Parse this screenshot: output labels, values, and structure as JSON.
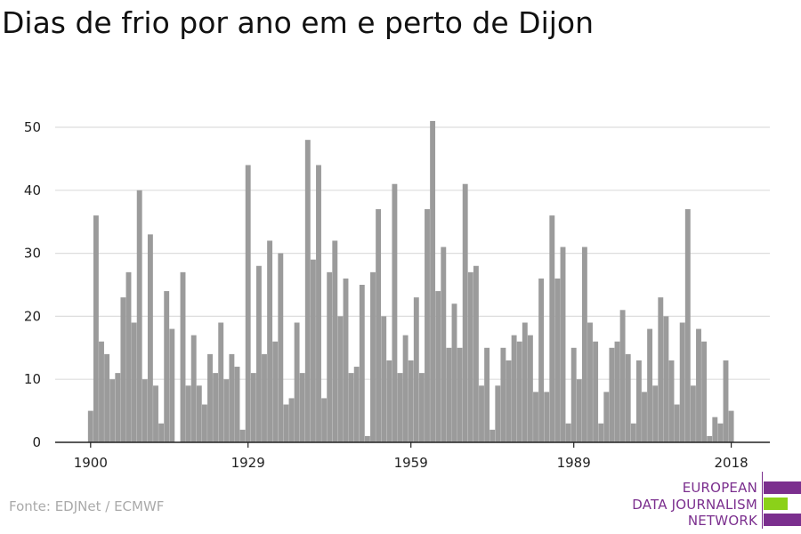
{
  "title": "Dias de frio por ano em e perto de Dijon",
  "source": "Fonte: EDJNet / ECMWF",
  "logo": {
    "lines": [
      "EUROPEAN",
      "DATA JOURNALISM",
      "NETWORK"
    ],
    "purple": "#7b2f8e",
    "green": "#8bd119"
  },
  "colors": {
    "bar": "#9b9b9b",
    "grid": "#dddddd",
    "axis": "#222222",
    "text": "#222222"
  },
  "chart_data": {
    "type": "bar",
    "title": "Dias de frio por ano em e perto de Dijon",
    "xlabel": "",
    "ylabel": "",
    "ylim": [
      0,
      52
    ],
    "yticks": [
      0,
      10,
      20,
      30,
      40,
      50
    ],
    "xticks": [
      1900,
      1929,
      1959,
      1989,
      2018
    ],
    "grid": true,
    "x": [
      1900,
      1901,
      1902,
      1903,
      1904,
      1905,
      1906,
      1907,
      1908,
      1909,
      1910,
      1911,
      1912,
      1913,
      1914,
      1915,
      1916,
      1917,
      1918,
      1919,
      1920,
      1921,
      1922,
      1923,
      1924,
      1925,
      1926,
      1927,
      1928,
      1929,
      1930,
      1931,
      1932,
      1933,
      1934,
      1935,
      1936,
      1937,
      1938,
      1939,
      1940,
      1941,
      1942,
      1943,
      1944,
      1945,
      1946,
      1947,
      1948,
      1949,
      1950,
      1951,
      1952,
      1953,
      1954,
      1955,
      1956,
      1957,
      1958,
      1959,
      1960,
      1961,
      1962,
      1963,
      1964,
      1965,
      1966,
      1967,
      1968,
      1969,
      1970,
      1971,
      1972,
      1973,
      1974,
      1975,
      1976,
      1977,
      1978,
      1979,
      1980,
      1981,
      1982,
      1983,
      1984,
      1985,
      1986,
      1987,
      1988,
      1989,
      1990,
      1991,
      1992,
      1993,
      1994,
      1995,
      1996,
      1997,
      1998,
      1999,
      2000,
      2001,
      2002,
      2003,
      2004,
      2005,
      2006,
      2007,
      2008,
      2009,
      2010,
      2011,
      2012,
      2013,
      2014,
      2015,
      2016,
      2017,
      2018
    ],
    "values": [
      5,
      36,
      16,
      14,
      10,
      11,
      23,
      27,
      19,
      40,
      10,
      33,
      9,
      3,
      24,
      18,
      0,
      27,
      9,
      17,
      9,
      6,
      14,
      11,
      19,
      10,
      14,
      12,
      2,
      44,
      11,
      28,
      14,
      32,
      16,
      30,
      6,
      7,
      19,
      11,
      48,
      29,
      44,
      7,
      27,
      32,
      20,
      26,
      11,
      12,
      25,
      1,
      27,
      37,
      20,
      13,
      41,
      11,
      17,
      13,
      23,
      11,
      37,
      51,
      24,
      31,
      15,
      22,
      15,
      41,
      27,
      28,
      9,
      15,
      2,
      9,
      15,
      13,
      17,
      16,
      19,
      17,
      8,
      26,
      8,
      36,
      26,
      31,
      3,
      15,
      10,
      31,
      19,
      16,
      3,
      8,
      15,
      16,
      21,
      14,
      3,
      13,
      8,
      18,
      9,
      23,
      20,
      13,
      6,
      19,
      37,
      9,
      18,
      16,
      1,
      4,
      3,
      13,
      5
    ]
  }
}
